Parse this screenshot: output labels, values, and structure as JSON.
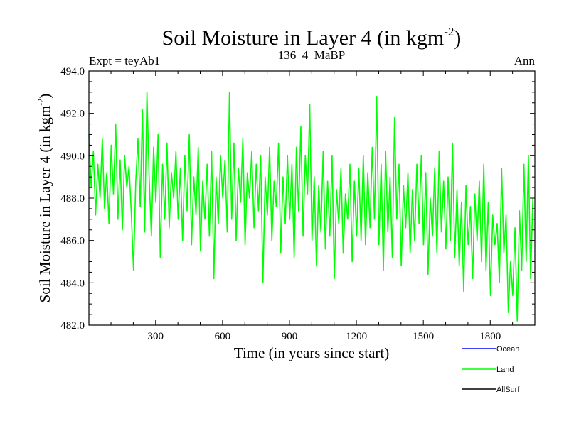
{
  "chart_data": {
    "type": "line",
    "title": "Soil Moisture in Layer 4 (in kgm",
    "title_sup": "-2",
    "title_close": ")",
    "left_label": "Expt = teyAb1",
    "center_label": "136_4_MaBP",
    "right_label": "Ann",
    "xlabel": "Time (in years since start)",
    "ylabel": "Soil Moisture in Layer 4 (in kgm",
    "ylabel_sup": "-2",
    "ylabel_close": ")",
    "xlim": [
      1,
      2000
    ],
    "ylim": [
      482.0,
      494.0
    ],
    "xticks": [
      300,
      600,
      900,
      1200,
      1500,
      1800
    ],
    "yticks": [
      482.0,
      484.0,
      486.0,
      488.0,
      490.0,
      492.0,
      494.0
    ],
    "ytick_labels": [
      "482.0",
      "484.0",
      "486.0",
      "488.0",
      "490.0",
      "492.0",
      "494.0"
    ],
    "series": [
      {
        "name": "Ocean",
        "color": "#0000ff",
        "values": []
      },
      {
        "name": "Land",
        "color": "#00ff00",
        "x_start": 1,
        "x_step": 10,
        "values": [
          491.0,
          488.5,
          490.2,
          487.2,
          489.6,
          488.0,
          490.8,
          487.5,
          489.2,
          486.8,
          490.5,
          488.2,
          491.5,
          487.0,
          489.8,
          486.5,
          490.0,
          488.5,
          489.5,
          487.3,
          484.6,
          488.8,
          490.8,
          487.6,
          492.2,
          486.4,
          493.0,
          489.0,
          486.2,
          490.4,
          487.8,
          491.0,
          485.2,
          489.6,
          487.0,
          490.6,
          486.6,
          489.2,
          488.0,
          490.2,
          487.0,
          489.4,
          486.0,
          490.0,
          487.4,
          491.0,
          485.8,
          489.0,
          487.2,
          490.4,
          485.5,
          488.8,
          487.0,
          489.6,
          486.2,
          490.2,
          484.2,
          489.0,
          486.8,
          490.0,
          488.0,
          489.8,
          486.4,
          493.0,
          487.0,
          490.6,
          486.0,
          489.4,
          487.8,
          490.8,
          485.8,
          489.2,
          488.0,
          490.2,
          486.6,
          489.6,
          487.4,
          490.0,
          484.0,
          489.0,
          487.2,
          490.4,
          486.0,
          488.8,
          487.6,
          490.6,
          485.4,
          489.0,
          486.8,
          490.0,
          487.0,
          489.6,
          485.2,
          490.4,
          487.4,
          491.4,
          486.2,
          490.0,
          488.2,
          492.4,
          486.0,
          489.0,
          484.8,
          488.6,
          486.4,
          490.2,
          485.6,
          488.8,
          486.2,
          490.0,
          484.2,
          488.4,
          486.8,
          489.4,
          485.4,
          488.2,
          487.0,
          489.6,
          485.0,
          488.8,
          486.2,
          489.4,
          486.0,
          490.0,
          485.8,
          489.2,
          486.6,
          490.4,
          487.0,
          492.8,
          485.8,
          489.6,
          484.6,
          490.2,
          486.4,
          489.0,
          485.2,
          491.8,
          487.0,
          489.6,
          484.8,
          488.6,
          486.6,
          489.2,
          485.4,
          488.4,
          486.0,
          489.6,
          486.8,
          490.0,
          485.8,
          489.2,
          484.4,
          488.0,
          486.2,
          489.4,
          485.4,
          490.2,
          486.4,
          488.8,
          485.6,
          489.0,
          486.0,
          490.6,
          485.2,
          488.4,
          484.8,
          487.8,
          483.6,
          488.6,
          485.8,
          487.6,
          484.2,
          488.2,
          486.0,
          488.8,
          485.0,
          489.6,
          484.6,
          487.8,
          483.4,
          487.2,
          485.8,
          486.8,
          484.0,
          489.4,
          485.4,
          487.2,
          482.6,
          485.0,
          483.4,
          486.6,
          482.2,
          487.4,
          484.6,
          489.6,
          485.0,
          490.0,
          484.2,
          488.0
        ]
      },
      {
        "name": "AllSurf",
        "color": "#000000",
        "values": []
      }
    ]
  }
}
